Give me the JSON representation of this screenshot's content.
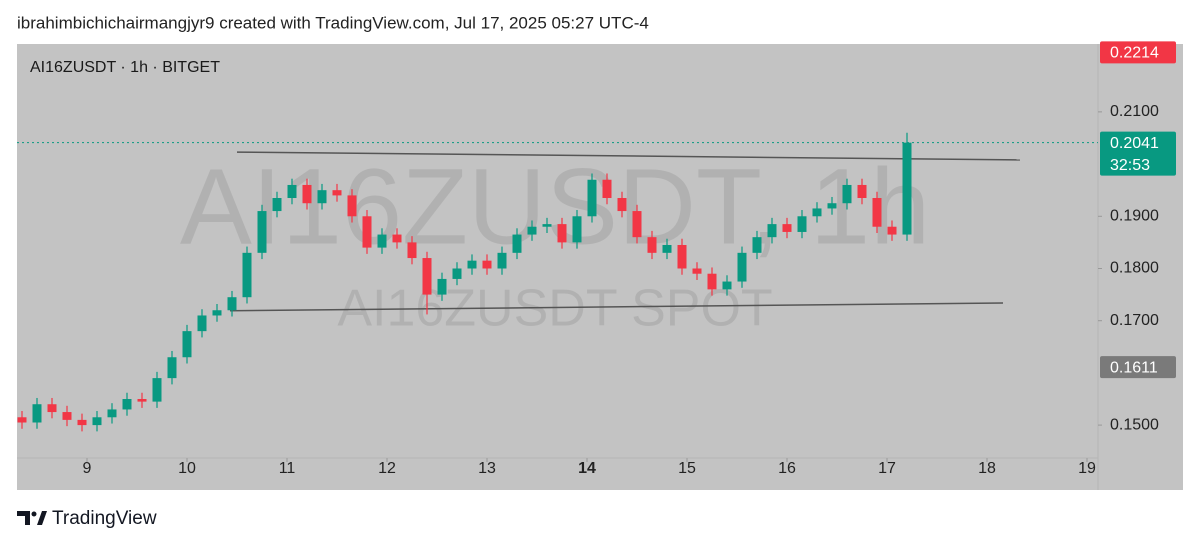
{
  "header": {
    "credit": "ibrahimbichichairmangjyr9 created with TradingView.com, Jul 17, 2025 05:27 UTC-4"
  },
  "chart_data": {
    "type": "candlestick",
    "symbol_label": "AI16ZUSDT · 1h · BITGET",
    "watermark": "AI16ZUSDT, 1h",
    "watermark_sub": "AI16ZUSDT SPOT",
    "x": [
      8.35,
      8.5,
      8.65,
      8.8,
      8.95,
      9.1,
      9.25,
      9.4,
      9.55,
      9.7,
      9.85,
      10.0,
      10.15,
      10.3,
      10.45,
      10.6,
      10.75,
      10.9,
      11.05,
      11.2,
      11.35,
      11.5,
      11.65,
      11.8,
      11.95,
      12.1,
      12.25,
      12.4,
      12.55,
      12.7,
      12.85,
      13.0,
      13.15,
      13.3,
      13.45,
      13.6,
      13.75,
      13.9,
      14.05,
      14.2,
      14.35,
      14.5,
      14.65,
      14.8,
      14.95,
      15.1,
      15.25,
      15.4,
      15.55,
      15.7,
      15.85,
      16.0,
      16.15,
      16.3,
      16.45,
      16.6,
      16.75,
      16.9,
      17.05,
      17.2
    ],
    "open": [
      0.1515,
      0.1505,
      0.154,
      0.1525,
      0.151,
      0.15,
      0.1515,
      0.153,
      0.155,
      0.1545,
      0.159,
      0.163,
      0.168,
      0.171,
      0.172,
      0.1745,
      0.183,
      0.191,
      0.1935,
      0.196,
      0.1925,
      0.195,
      0.194,
      0.19,
      0.184,
      0.1865,
      0.185,
      0.182,
      0.175,
      0.178,
      0.18,
      0.1815,
      0.18,
      0.183,
      0.1865,
      0.188,
      0.1885,
      0.185,
      0.19,
      0.197,
      0.1935,
      0.191,
      0.186,
      0.183,
      0.1845,
      0.18,
      0.179,
      0.176,
      0.1775,
      0.183,
      0.186,
      0.1885,
      0.187,
      0.19,
      0.1915,
      0.1925,
      0.196,
      0.1935,
      0.188,
      0.1865
    ],
    "high": [
      0.1527,
      0.1552,
      0.1552,
      0.1537,
      0.1522,
      0.1527,
      0.1542,
      0.1562,
      0.1562,
      0.1602,
      0.1642,
      0.1692,
      0.1722,
      0.1732,
      0.1757,
      0.1842,
      0.1922,
      0.1947,
      0.1972,
      0.1972,
      0.1962,
      0.1962,
      0.1952,
      0.1912,
      0.1877,
      0.1877,
      0.1862,
      0.1832,
      0.1792,
      0.1812,
      0.1827,
      0.1827,
      0.1842,
      0.1877,
      0.1892,
      0.1897,
      0.1897,
      0.1912,
      0.1982,
      0.1982,
      0.1947,
      0.1922,
      0.1872,
      0.1857,
      0.1857,
      0.1812,
      0.1802,
      0.1787,
      0.1842,
      0.1872,
      0.1897,
      0.1897,
      0.1912,
      0.1927,
      0.1937,
      0.1972,
      0.1972,
      0.1947,
      0.1892,
      0.206
    ],
    "low": [
      0.1493,
      0.1493,
      0.1513,
      0.1498,
      0.1488,
      0.1488,
      0.1503,
      0.1518,
      0.1533,
      0.1533,
      0.1578,
      0.1618,
      0.1668,
      0.1698,
      0.1708,
      0.1733,
      0.1818,
      0.1898,
      0.1923,
      0.1913,
      0.1913,
      0.1928,
      0.1888,
      0.1828,
      0.1828,
      0.1838,
      0.1808,
      0.1712,
      0.1738,
      0.1768,
      0.1788,
      0.1788,
      0.1788,
      0.1818,
      0.1853,
      0.1868,
      0.1838,
      0.1838,
      0.1888,
      0.1923,
      0.1898,
      0.1848,
      0.1818,
      0.1818,
      0.1788,
      0.1778,
      0.1748,
      0.1748,
      0.1763,
      0.1818,
      0.1848,
      0.1858,
      0.1858,
      0.1888,
      0.1903,
      0.1913,
      0.1923,
      0.1868,
      0.1853,
      0.1853
    ],
    "close": [
      0.1505,
      0.154,
      0.1525,
      0.151,
      0.15,
      0.1515,
      0.153,
      0.155,
      0.1545,
      0.159,
      0.163,
      0.168,
      0.171,
      0.172,
      0.1745,
      0.183,
      0.191,
      0.1935,
      0.196,
      0.1925,
      0.195,
      0.194,
      0.19,
      0.184,
      0.1865,
      0.185,
      0.182,
      0.175,
      0.178,
      0.18,
      0.1815,
      0.18,
      0.183,
      0.1865,
      0.188,
      0.1885,
      0.185,
      0.19,
      0.197,
      0.1935,
      0.191,
      0.186,
      0.183,
      0.1845,
      0.18,
      0.179,
      0.176,
      0.1775,
      0.183,
      0.186,
      0.1885,
      0.187,
      0.19,
      0.1915,
      0.1925,
      0.196,
      0.1935,
      0.188,
      0.1865,
      0.2041
    ],
    "up_color": "#089981",
    "down_color": "#f23645",
    "xlim": [
      8.3,
      19.11
    ],
    "ylim": [
      0.1437,
      0.223
    ],
    "xticks": [
      9,
      10,
      11,
      12,
      13,
      14,
      15,
      16,
      17,
      18,
      19
    ],
    "bold_xtick": 14,
    "yticks": [
      {
        "value": 0.15,
        "label": "0.1500"
      },
      {
        "value": 0.17,
        "label": "0.1700"
      },
      {
        "value": 0.18,
        "label": "0.1800"
      },
      {
        "value": 0.19,
        "label": "0.1900"
      },
      {
        "value": 0.21,
        "label": "0.2100"
      }
    ],
    "price_labels": [
      {
        "value": 0.2214,
        "color": "#f23645"
      },
      {
        "value": 0.2041,
        "color": "#089981",
        "sub": "32:53"
      },
      {
        "value": 0.1611,
        "color": "#7a7a7a"
      }
    ],
    "trendlines": [
      {
        "x": [
          10.5,
          18.33
        ],
        "y": [
          0.2023,
          0.2008
        ]
      },
      {
        "x": [
          10.43,
          18.16
        ],
        "y": [
          0.1719,
          0.1734
        ]
      }
    ]
  },
  "footer": {
    "brand": "TradingView"
  }
}
